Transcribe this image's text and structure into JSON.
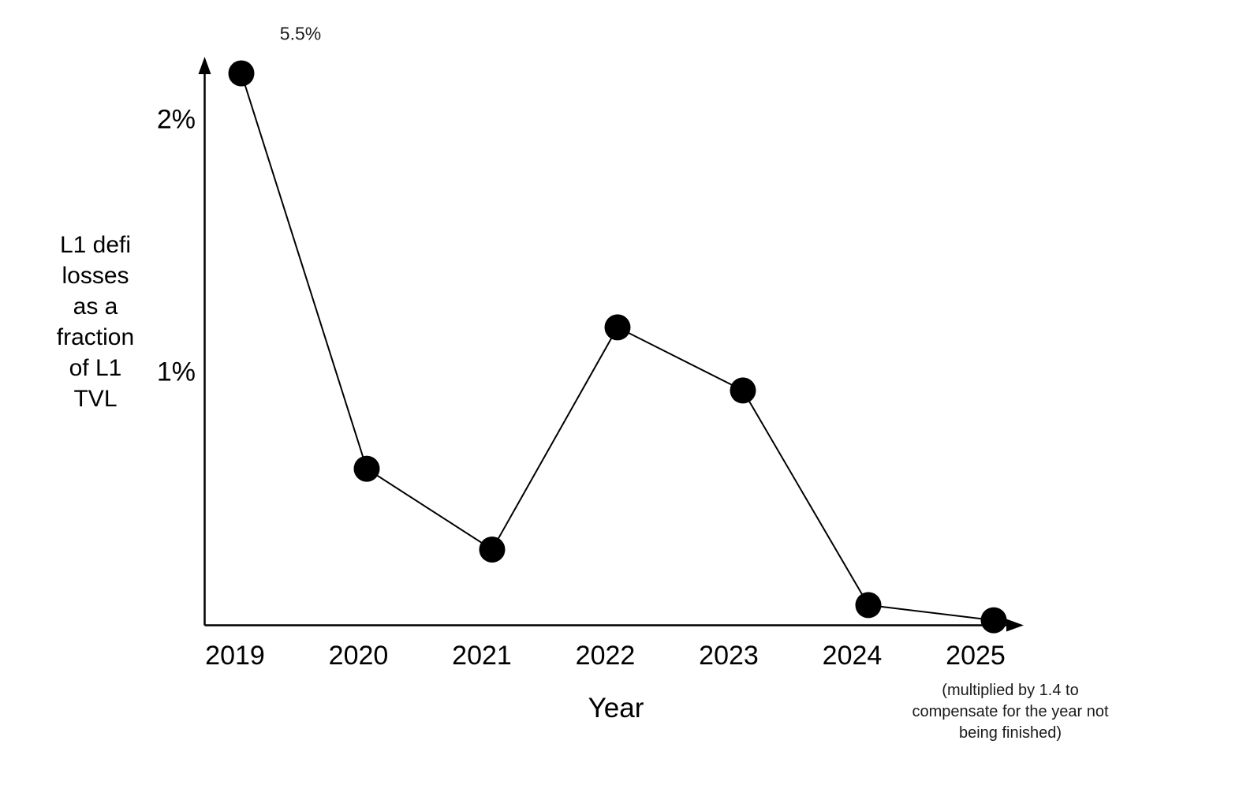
{
  "page": {
    "background_color": "#ffffff",
    "ink_color": "#000000"
  },
  "chart_data": {
    "type": "line",
    "title": "",
    "xlabel": "Year",
    "ylabel": "L1 defi losses as a fraction of L1 TVL",
    "ylabel_display": "L1 defi\nlosses\nas a\nfraction\nof L1\nTVL",
    "categories": [
      "2019",
      "2020",
      "2021",
      "2022",
      "2023",
      "2024",
      "2025"
    ],
    "values": [
      5.5,
      0.62,
      0.3,
      1.18,
      0.93,
      0.08,
      0.02
    ],
    "values_unit": "percent",
    "y_ticks": [
      {
        "label": "2%",
        "value": 2.0
      },
      {
        "label": "1%",
        "value": 1.0
      }
    ],
    "ylim_plotted": [
      0,
      2.18
    ],
    "clip_note": "2019 point is drawn clipped at the top of the axis; its true value 5.5% is written above it",
    "point_annotations": [
      {
        "category": "2019",
        "label": "5.5%"
      }
    ],
    "x_note": "(multiplied by 1.4 to compensate for the year not being finished)",
    "x_note_display": "(multiplied by 1.4 to\ncompensate for the year not\nbeing finished)",
    "x_note_applies_to": "2025",
    "grid": false,
    "legend": "none",
    "marker": "filled-circle",
    "line_color": "#000000",
    "marker_color": "#000000",
    "axis_color": "#000000"
  }
}
